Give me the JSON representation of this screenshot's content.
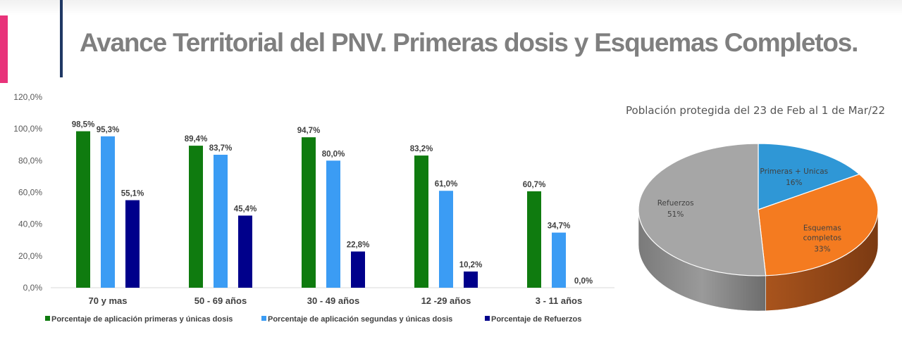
{
  "slide": {
    "title": "Avance Territorial del PNV. Primeras dosis y Esquemas Completos.",
    "accent_color": "#e8337a",
    "divider_color": "#1f3864",
    "title_color": "#7f7f7f"
  },
  "chart_data": [
    {
      "type": "bar",
      "title": "",
      "xlabel": "",
      "ylabel": "",
      "categories": [
        "70  y mas",
        "50 - 69 años",
        "30 - 49 años",
        "12 -29 años",
        "3 - 11 años"
      ],
      "series": [
        {
          "name": "Porcentaje de aplicación primeras y únicas dosis",
          "color": "#0f7b0f",
          "values": [
            98.5,
            89.4,
            94.7,
            83.2,
            60.7
          ],
          "labels": [
            "98,5%",
            "89,4%",
            "94,7%",
            "83,2%",
            "60,7%"
          ]
        },
        {
          "name": "Porcentaje de aplicación segundas y únicas dosis",
          "color": "#3b9cf4",
          "values": [
            95.3,
            83.7,
            80.0,
            61.0,
            34.7
          ],
          "labels": [
            "95,3%",
            "83,7%",
            "80,0%",
            "61,0%",
            "34,7%"
          ]
        },
        {
          "name": "Porcentaje de Refuerzos",
          "color": "#00008b",
          "values": [
            55.1,
            45.4,
            22.8,
            10.2,
            0.0
          ],
          "labels": [
            "55,1%",
            "45,4%",
            "22,8%",
            "10,2%",
            "0,0%"
          ]
        }
      ],
      "ylim": [
        0,
        120
      ],
      "yticks": [
        0,
        20,
        40,
        60,
        80,
        100,
        120
      ],
      "ytick_labels": [
        "0,0%",
        "20,0%",
        "40,0%",
        "60,0%",
        "80,0%",
        "100,0%",
        "120,0%"
      ],
      "grid": false,
      "legend_position": "bottom"
    },
    {
      "type": "pie",
      "title": "Población protegida del 23 de Feb al 1 de Mar/22",
      "slices": [
        {
          "label": "Primeras + Unicas",
          "value": 16,
          "display": "16%",
          "color": "#2f97d6"
        },
        {
          "label": "Esquemas completos",
          "label_lines": [
            "Esquemas",
            "completos"
          ],
          "value": 33,
          "display": "33%",
          "color": "#f47b20"
        },
        {
          "label": "Refuerzos",
          "value": 51,
          "display": "51%",
          "color": "#a6a6a6"
        }
      ],
      "style": "3d",
      "legend_position": "none"
    }
  ]
}
